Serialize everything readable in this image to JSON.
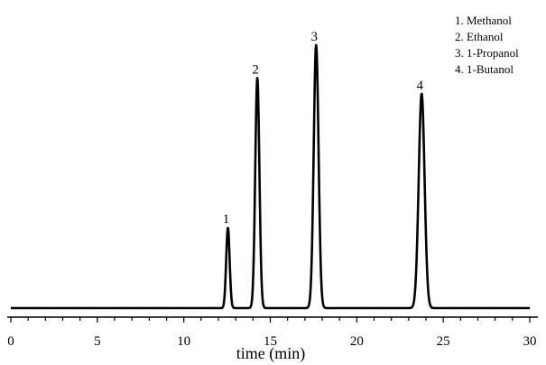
{
  "chart_data": {
    "type": "line",
    "title": "",
    "xlabel": "time (min)",
    "ylabel": "",
    "xlim": [
      0,
      30
    ],
    "ylim": [
      0,
      100
    ],
    "x_ticks": [
      0,
      5,
      10,
      15,
      20,
      25,
      30
    ],
    "x_tick_labels": [
      "0",
      "5",
      "10",
      "15",
      "20",
      "25",
      "30"
    ],
    "x_minor_tick_step": 1,
    "grid": false,
    "legend_position": "top-right",
    "line_color": "#000000",
    "baseline": 0,
    "peaks": [
      {
        "label": "1",
        "name": "Methanol",
        "retention_time": 12.55,
        "height": 30.5,
        "width_sigma": 0.1
      },
      {
        "label": "2",
        "name": "Ethanol",
        "retention_time": 14.25,
        "height": 87.5,
        "width_sigma": 0.12
      },
      {
        "label": "3",
        "name": "1-Propanol",
        "retention_time": 17.65,
        "height": 100,
        "width_sigma": 0.14
      },
      {
        "label": "4",
        "name": "1-Butanol",
        "retention_time": 23.75,
        "height": 81.5,
        "width_sigma": 0.17
      }
    ],
    "legend": [
      "1. Methanol",
      "2. Ethanol",
      "3. 1-Propanol",
      "4. 1-Butanol"
    ]
  }
}
